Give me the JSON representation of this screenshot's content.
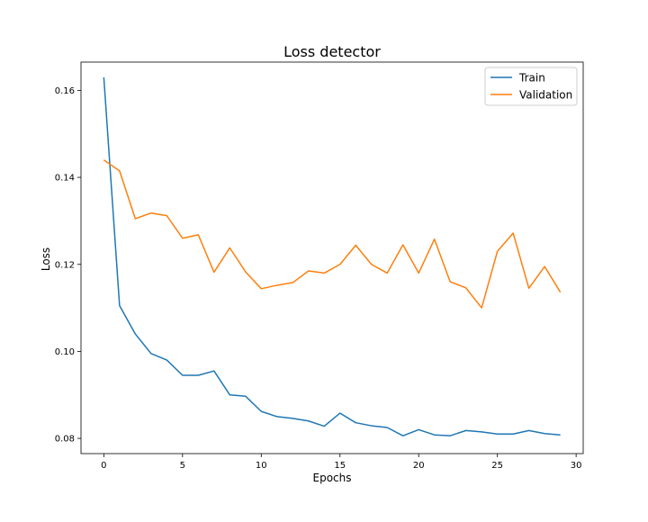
{
  "chart_data": {
    "type": "line",
    "title": "Loss detector",
    "xlabel": "Epochs",
    "ylabel": "Loss",
    "xlim": [
      -1.45,
      30.45
    ],
    "ylim": [
      0.0765,
      0.1665
    ],
    "xticks": [
      0,
      5,
      10,
      15,
      20,
      25,
      30
    ],
    "yticks": [
      0.08,
      0.1,
      0.12,
      0.14,
      0.16
    ],
    "ytick_labels": [
      "0.08",
      "0.10",
      "0.12",
      "0.14",
      "0.16"
    ],
    "grid": false,
    "legend_position": "top-right",
    "x": [
      0,
      1,
      2,
      3,
      4,
      5,
      6,
      7,
      8,
      9,
      10,
      11,
      12,
      13,
      14,
      15,
      16,
      17,
      18,
      19,
      20,
      21,
      22,
      23,
      24,
      25,
      26,
      27,
      28,
      29
    ],
    "series": [
      {
        "name": "Train",
        "color": "#1f77b4",
        "values": [
          0.163,
          0.1105,
          0.104,
          0.0995,
          0.098,
          0.0945,
          0.0945,
          0.0955,
          0.09,
          0.0897,
          0.0862,
          0.085,
          0.0846,
          0.084,
          0.0828,
          0.0858,
          0.0836,
          0.0829,
          0.0825,
          0.0806,
          0.082,
          0.0808,
          0.0806,
          0.0818,
          0.0815,
          0.081,
          0.081,
          0.0818,
          0.0811,
          0.0808
        ]
      },
      {
        "name": "Validation",
        "color": "#ff7f0e",
        "values": [
          0.144,
          0.1415,
          0.1305,
          0.1318,
          0.1312,
          0.126,
          0.1268,
          0.1182,
          0.1238,
          0.1183,
          0.1144,
          0.1152,
          0.1158,
          0.1185,
          0.118,
          0.12,
          0.1244,
          0.12,
          0.118,
          0.1245,
          0.118,
          0.1258,
          0.116,
          0.1146,
          0.11,
          0.123,
          0.1272,
          0.1145,
          0.1195,
          0.1136
        ]
      }
    ]
  }
}
